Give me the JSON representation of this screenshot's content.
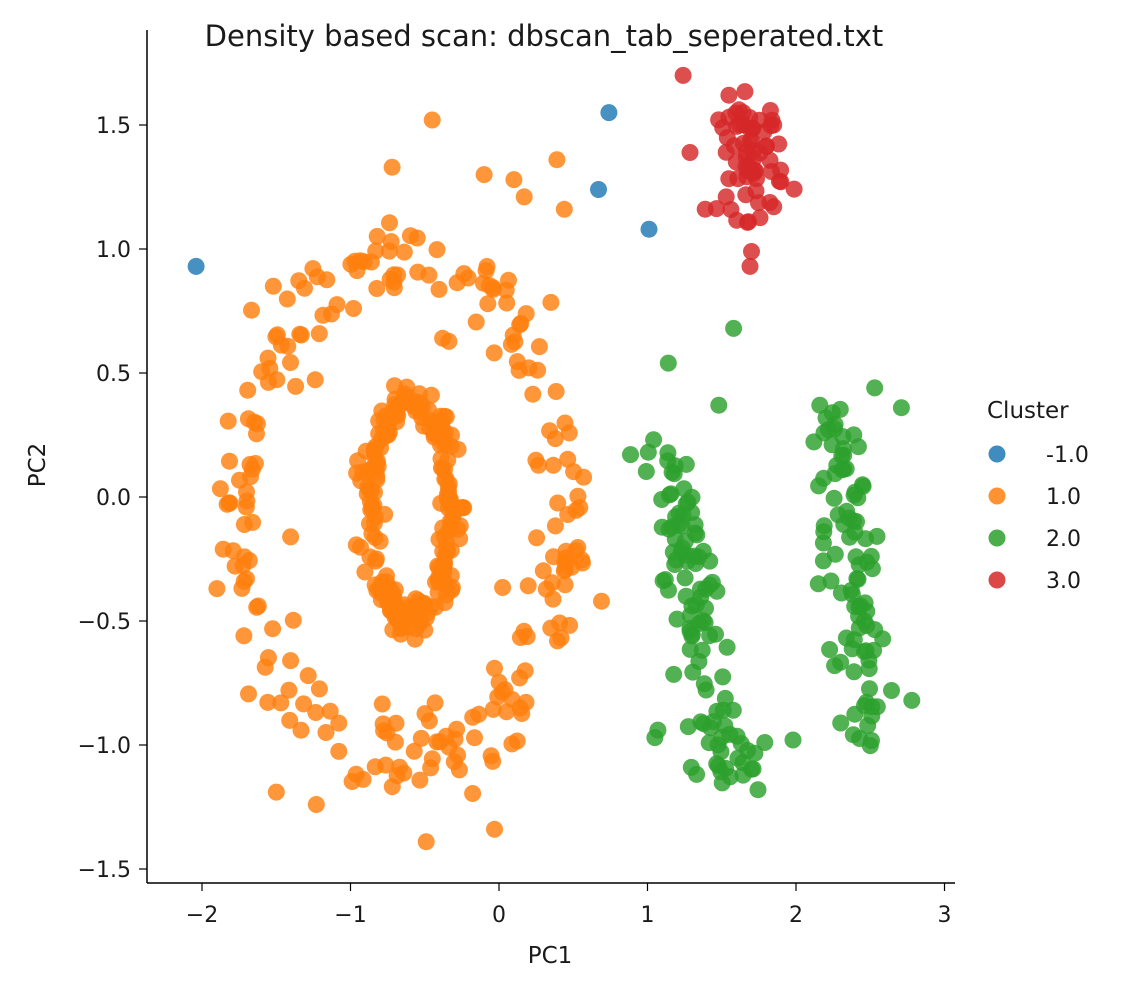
{
  "chart_data": {
    "type": "scatter",
    "title": "Density based scan: dbscan_tab_seperated.txt",
    "xlabel": "PC1",
    "ylabel": "PC2",
    "xlim": [
      -2.3,
      3.05
    ],
    "ylim": [
      -1.55,
      1.88
    ],
    "x_ticks": [
      -2,
      -1,
      0,
      1,
      2,
      3
    ],
    "x_tick_labels": [
      "−2",
      "−1",
      "0",
      "1",
      "2",
      "3"
    ],
    "y_ticks": [
      -1.5,
      -1.0,
      -0.5,
      0.0,
      0.5,
      1.0,
      1.5
    ],
    "y_tick_labels": [
      "−1.5",
      "−1.0",
      "−0.5",
      "0.0",
      "0.5",
      "1.0",
      "1.5"
    ],
    "grid": false,
    "legend_title": "Cluster",
    "legend_position": "right",
    "series": [
      {
        "name": "-1.0",
        "color": "#1f77b4",
        "points": [
          [
            -2.04,
            0.93
          ],
          [
            0.74,
            1.55
          ],
          [
            0.67,
            1.24
          ],
          [
            1.01,
            1.08
          ]
        ]
      },
      {
        "name": "1.0",
        "color": "#ff7f0e",
        "shapes": [
          {
            "kind": "ellipse",
            "center": [
              -0.6,
              -0.05
            ],
            "radii": [
              0.26,
              0.42
            ],
            "n": 160,
            "jitter": 0.05
          },
          {
            "kind": "ellipse",
            "center": [
              -0.6,
              -0.05
            ],
            "radii": [
              0.34,
              0.46
            ],
            "n": 70,
            "jitter": 0.05
          },
          {
            "kind": "ellipse",
            "center": [
              -0.65,
              -0.05
            ],
            "radii": [
              1.1,
              1.0
            ],
            "n": 230,
            "jitter": 0.09
          }
        ],
        "points": [
          [
            -0.45,
            1.52
          ],
          [
            -0.72,
            1.33
          ],
          [
            0.39,
            1.36
          ],
          [
            0.44,
            1.16
          ],
          [
            0.1,
            1.28
          ],
          [
            -0.1,
            1.3
          ],
          [
            0.17,
            1.21
          ],
          [
            -1.5,
            -1.19
          ],
          [
            -1.23,
            -1.24
          ],
          [
            -0.49,
            -1.39
          ],
          [
            -0.03,
            -1.34
          ],
          [
            0.69,
            -0.42
          ],
          [
            -0.38,
            0.64
          ],
          [
            -1.52,
            0.85
          ],
          [
            0.57,
            0.08
          ],
          [
            -0.77,
            -0.07
          ]
        ]
      },
      {
        "name": "2.0",
        "color": "#2ca02c",
        "bands": [
          {
            "x0": 1.08,
            "y0": 0.22,
            "x1": 1.58,
            "y1": -1.15,
            "n": 110,
            "jitter": 0.1
          },
          {
            "x0": 2.25,
            "y0": 0.36,
            "x1": 2.5,
            "y1": -1.0,
            "n": 90,
            "jitter": 0.09
          }
        ],
        "points": [
          [
            1.58,
            0.68
          ],
          [
            1.14,
            0.54
          ],
          [
            1.48,
            0.37
          ],
          [
            1.05,
            -0.97
          ],
          [
            1.07,
            -0.94
          ],
          [
            1.79,
            -0.99
          ],
          [
            1.98,
            -0.98
          ],
          [
            2.53,
            0.44
          ],
          [
            2.71,
            0.36
          ],
          [
            2.15,
            -0.35
          ],
          [
            2.26,
            -0.68
          ],
          [
            2.78,
            -0.82
          ],
          [
            2.16,
            0.37
          ]
        ]
      },
      {
        "name": "3.0",
        "color": "#d62728",
        "shapes": [
          {
            "kind": "blob",
            "center": [
              1.7,
              1.37
            ],
            "radii": [
              0.11,
              0.12
            ],
            "n": 60
          }
        ],
        "points": [
          [
            1.24,
            1.7
          ],
          [
            1.68,
            1.11
          ],
          [
            1.7,
            0.99
          ],
          [
            1.69,
            0.93
          ],
          [
            1.85,
            1.17
          ],
          [
            1.85,
            1.5
          ],
          [
            1.62,
            1.5
          ],
          [
            1.53,
            1.21
          ],
          [
            1.53,
            1.39
          ]
        ]
      }
    ]
  }
}
